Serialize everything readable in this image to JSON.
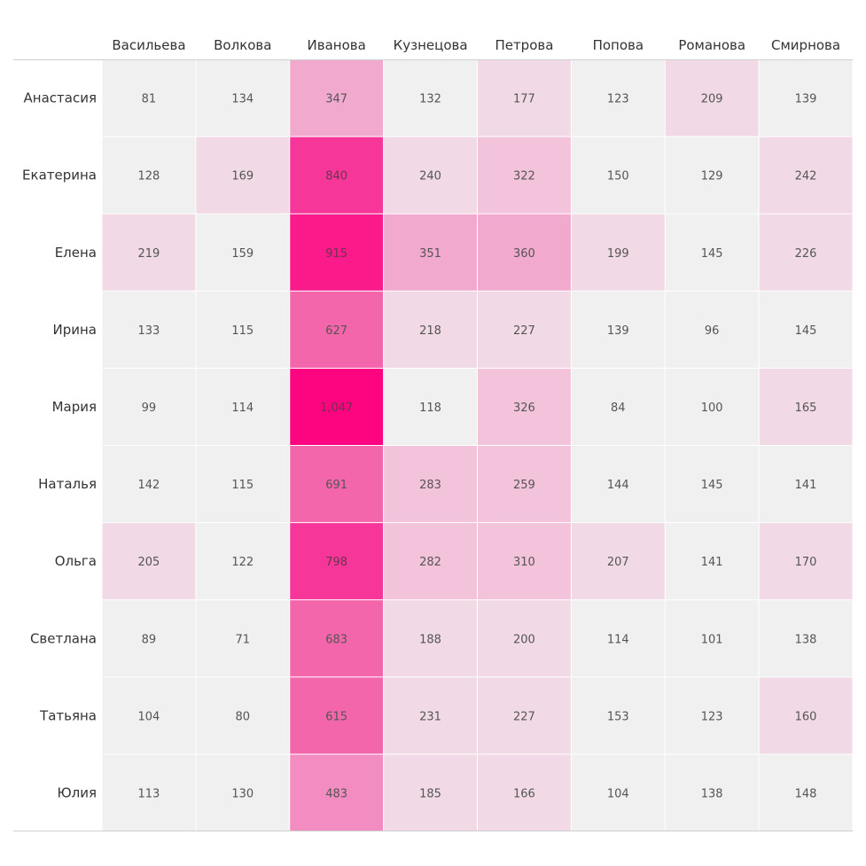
{
  "chart_data": {
    "type": "heatmap",
    "columns": [
      "Васильева",
      "Волкова",
      "Иванова",
      "Кузнецова",
      "Петрова",
      "Попова",
      "Романова",
      "Смирнова"
    ],
    "rows": [
      "Анастасия",
      "Екатерина",
      "Елена",
      "Ирина",
      "Мария",
      "Наталья",
      "Ольга",
      "Светлана",
      "Татьяна",
      "Юлия"
    ],
    "values": [
      [
        81,
        134,
        347,
        132,
        177,
        123,
        209,
        139
      ],
      [
        128,
        169,
        840,
        240,
        322,
        150,
        129,
        242
      ],
      [
        219,
        159,
        915,
        351,
        360,
        199,
        145,
        226
      ],
      [
        133,
        115,
        627,
        218,
        227,
        139,
        96,
        145
      ],
      [
        99,
        114,
        1047,
        118,
        326,
        84,
        100,
        165
      ],
      [
        142,
        115,
        691,
        283,
        259,
        144,
        145,
        141
      ],
      [
        205,
        122,
        798,
        282,
        310,
        207,
        141,
        170
      ],
      [
        89,
        71,
        683,
        188,
        200,
        114,
        101,
        138
      ],
      [
        104,
        80,
        615,
        231,
        227,
        153,
        123,
        160
      ],
      [
        113,
        130,
        483,
        185,
        166,
        104,
        138,
        148
      ]
    ],
    "color_scale": [
      {
        "min": 0,
        "color": "#f0f0f0"
      },
      {
        "min": 160,
        "color": "#f1dae5"
      },
      {
        "min": 250,
        "color": "#f2c3db"
      },
      {
        "min": 340,
        "color": "#f2a9ce"
      },
      {
        "min": 450,
        "color": "#f38dc1"
      },
      {
        "min": 550,
        "color": "#f366ac"
      },
      {
        "min": 750,
        "color": "#f63699"
      },
      {
        "min": 880,
        "color": "#fa1a8a"
      },
      {
        "min": 1000,
        "color": "#fd0480"
      }
    ]
  }
}
